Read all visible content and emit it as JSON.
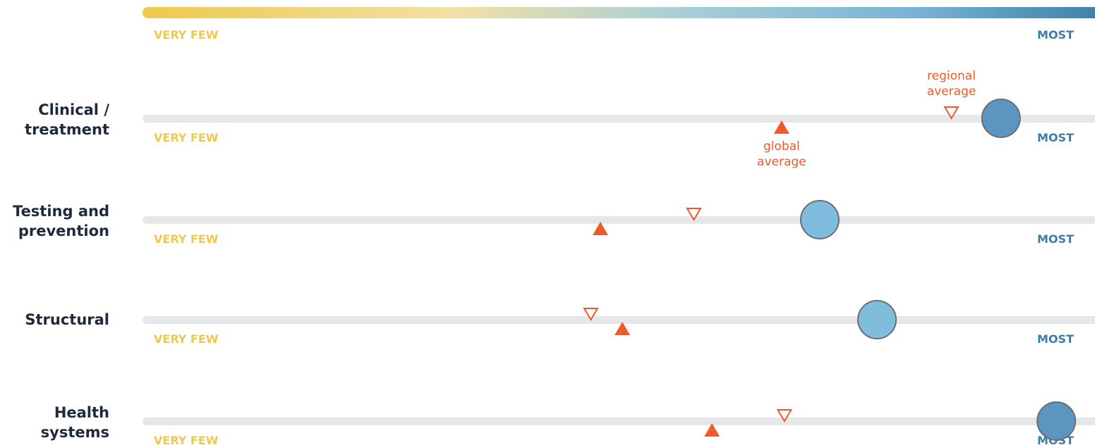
{
  "chart_data": {
    "type": "scatter",
    "scale": {
      "low_label": "VERY FEW",
      "high_label": "MOST",
      "low_color": "#edc94c",
      "high_color": "#3b7fa6"
    },
    "track_color": "#e6e7e8",
    "marker_colors": {
      "global_average": "#f05a28",
      "regional_average": "#f05a28"
    },
    "annotations": {
      "regional": [
        "regional",
        "average"
      ],
      "global": [
        "global",
        "average"
      ]
    },
    "rows": [
      {
        "label": [
          "Clinical /",
          "treatment"
        ],
        "value": 0.9,
        "global_average": 0.67,
        "regional_average": 0.848,
        "dot_color": "#5b95c0"
      },
      {
        "label": [
          "Testing and",
          "prevention"
        ],
        "value": 0.71,
        "global_average": 0.48,
        "regional_average": 0.578,
        "dot_color": "#80bcdc"
      },
      {
        "label": [
          "Structural"
        ],
        "value": 0.77,
        "global_average": 0.503,
        "regional_average": 0.47,
        "dot_color": "#80bcdc"
      },
      {
        "label": [
          "Health",
          "systems"
        ],
        "value": 0.958,
        "global_average": 0.597,
        "regional_average": 0.673,
        "dot_color": "#5b95c0"
      }
    ]
  }
}
